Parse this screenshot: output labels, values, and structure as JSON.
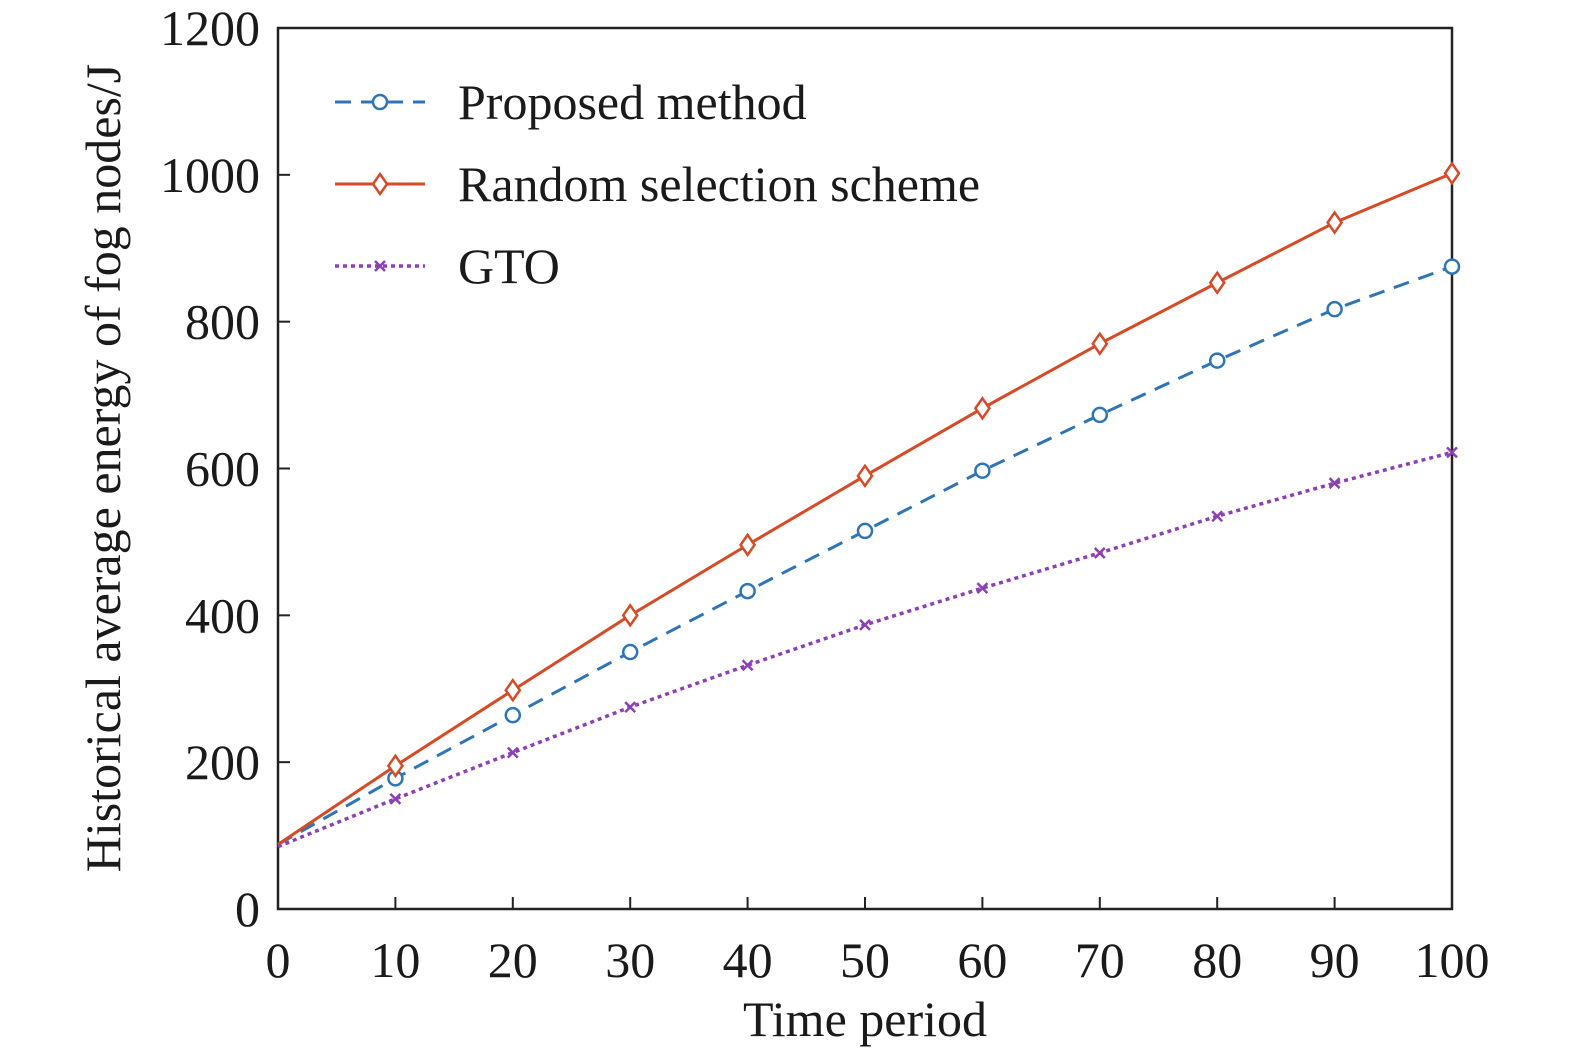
{
  "chart_data": {
    "type": "line",
    "title": "",
    "xlabel": "Time period",
    "ylabel": "Historical average energy of fog nodes/J",
    "xlim": [
      0,
      100
    ],
    "ylim": [
      0,
      1200
    ],
    "xticks": [
      0,
      10,
      20,
      30,
      40,
      50,
      60,
      70,
      80,
      90,
      100
    ],
    "yticks": [
      0,
      200,
      400,
      600,
      800,
      1000,
      1200
    ],
    "grid": false,
    "legend": "top-left",
    "series": [
      {
        "name": "Proposed method",
        "color": "#2e75b6",
        "style": "dashed",
        "marker": "circle",
        "x": [
          0,
          10,
          20,
          30,
          40,
          50,
          60,
          70,
          80,
          90,
          100
        ],
        "y": [
          88,
          178,
          264,
          350,
          433,
          515,
          597,
          673,
          747,
          817,
          875
        ]
      },
      {
        "name": "Random selection scheme",
        "color": "#d64a26",
        "style": "solid",
        "marker": "diamond",
        "x": [
          0,
          10,
          20,
          30,
          40,
          50,
          60,
          70,
          80,
          90,
          100
        ],
        "y": [
          88,
          195,
          298,
          400,
          496,
          590,
          682,
          770,
          853,
          935,
          1002
        ]
      },
      {
        "name": "GTO",
        "color": "#8e3fb5",
        "style": "dotted",
        "marker": "x",
        "x": [
          0,
          10,
          20,
          30,
          40,
          50,
          60,
          70,
          80,
          90,
          100
        ],
        "y": [
          85,
          150,
          213,
          275,
          332,
          387,
          437,
          485,
          535,
          580,
          622
        ]
      }
    ]
  }
}
